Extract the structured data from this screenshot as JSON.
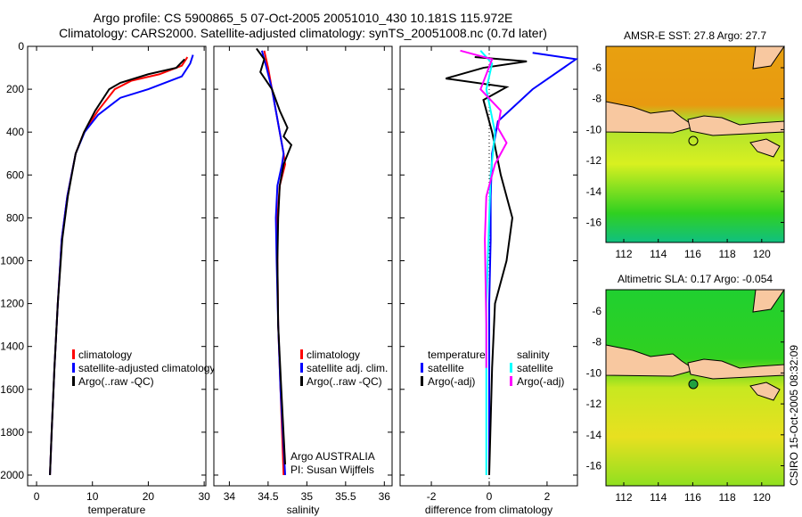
{
  "title_line1": "Argo profile: CS 5900865_5 07-Oct-2005 20051010_430 10.181S 115.972E",
  "title_line2": "Climatology: CARS2000. Satellite-adjusted climatology: synTS_20051008.nc (0.7d later)",
  "stamp": "CSIRO 15-Oct-2005 08:32:09",
  "colors": {
    "climatology": "#ff0000",
    "satellite": "#0000ff",
    "argo": "#000000",
    "sat_sal": "#00ffff",
    "argo_sal": "#ff00ff"
  },
  "chart_data": [
    {
      "type": "line",
      "xlabel": "temperature",
      "ylabel": "",
      "xlim": [
        -1.6,
        30.3
      ],
      "ylim": [
        2050,
        0
      ],
      "xticks": [
        "0",
        "10",
        "20",
        "30"
      ],
      "xtickv": [
        0,
        10,
        20,
        30
      ],
      "yticks": [
        "0",
        "200",
        "400",
        "600",
        "800",
        "1000",
        "1200",
        "1400",
        "1600",
        "1800",
        "2000"
      ],
      "ytickv": [
        0,
        200,
        400,
        600,
        800,
        1000,
        1200,
        1400,
        1600,
        1800,
        2000
      ],
      "legend": [
        "climatology",
        "satellite-adjusted climatology",
        "Argo(..raw -QC)"
      ],
      "series": [
        {
          "name": "climatology",
          "color": "#ff0000",
          "x": [
            27,
            26,
            22,
            17,
            14,
            11,
            8.5,
            7,
            5.5,
            4.5,
            3.8,
            3.2,
            2.7,
            2.4
          ],
          "y": [
            50,
            90,
            130,
            160,
            200,
            300,
            400,
            500,
            700,
            900,
            1200,
            1500,
            1800,
            2000
          ]
        },
        {
          "name": "satellite-adjusted climatology",
          "color": "#0000ff",
          "x": [
            28,
            27.5,
            26,
            20,
            15,
            11,
            8.6,
            7,
            5.5,
            4.5,
            3.8,
            3.2,
            2.7,
            2.4
          ],
          "y": [
            40,
            80,
            140,
            200,
            240,
            320,
            400,
            500,
            700,
            900,
            1200,
            1500,
            1800,
            2000
          ]
        },
        {
          "name": "Argo(..raw -QC)",
          "color": "#000000",
          "x": [
            26.5,
            25,
            20,
            15,
            13,
            10.5,
            8.5,
            7,
            5.6,
            4.6,
            3.8,
            3.2,
            2.7,
            2.4
          ],
          "y": [
            60,
            100,
            130,
            170,
            200,
            300,
            400,
            500,
            700,
            900,
            1200,
            1500,
            1800,
            2000
          ]
        }
      ]
    },
    {
      "type": "line",
      "xlabel": "salinity",
      "xlim": [
        33.8,
        36.1
      ],
      "ylim": [
        2050,
        0
      ],
      "xticks": [
        "34",
        "34.5",
        "35",
        "35.5",
        "36"
      ],
      "xtickv": [
        34,
        34.5,
        35,
        35.5,
        36
      ],
      "legend": [
        "climatology",
        "satellite adj. clim.",
        "Argo(..raw -QC)"
      ],
      "annotation": [
        "Argo AUSTRALIA",
        "PI: Susan Wijffels"
      ],
      "series": [
        {
          "name": "climatology",
          "color": "#ff0000",
          "x": [
            34.45,
            34.5,
            34.55,
            34.6,
            34.65,
            34.7,
            34.72,
            34.65,
            34.62,
            34.62,
            34.63,
            34.66,
            34.7
          ],
          "y": [
            20,
            100,
            200,
            300,
            400,
            500,
            550,
            650,
            800,
            1000,
            1300,
            1600,
            2000
          ]
        },
        {
          "name": "satellite adj. clim.",
          "color": "#0000ff",
          "x": [
            34.42,
            34.48,
            34.55,
            34.6,
            34.65,
            34.7,
            34.68,
            34.62,
            34.6,
            34.61,
            34.63,
            34.66,
            34.72
          ],
          "y": [
            20,
            100,
            200,
            300,
            400,
            500,
            550,
            650,
            800,
            1000,
            1300,
            1600,
            2000
          ]
        },
        {
          "name": "Argo(..raw -QC)",
          "color": "#000000",
          "x": [
            34.35,
            34.45,
            34.4,
            34.55,
            34.65,
            34.75,
            34.7,
            34.8,
            34.7,
            34.65,
            34.63,
            34.62,
            34.63,
            34.67,
            34.72
          ],
          "y": [
            10,
            60,
            120,
            200,
            300,
            380,
            420,
            460,
            550,
            650,
            800,
            1000,
            1300,
            1600,
            1950
          ]
        }
      ]
    },
    {
      "type": "line",
      "xlabel": "difference from climatology",
      "xlim": [
        -3.08,
        3.05
      ],
      "ylim": [
        2050,
        0
      ],
      "xticks": [
        "-2",
        "0",
        "2"
      ],
      "xtickv": [
        -2,
        0,
        2
      ],
      "legend": [
        "temperature",
        "satellite",
        "Argo(-adj)",
        "salinity",
        "satellite",
        "Argo(-adj)"
      ],
      "series": [
        {
          "name": "temperature satellite",
          "color": "#0000ff",
          "x": [
            1.5,
            3,
            1.5,
            0.3,
            0.1,
            0.05,
            0.05,
            0,
            0,
            0
          ],
          "y": [
            30,
            60,
            200,
            350,
            500,
            700,
            900,
            1200,
            1600,
            2000
          ]
        },
        {
          "name": "temperature Argo(-adj)",
          "color": "#000000",
          "x": [
            -0.5,
            1.3,
            -0.2,
            -1.5,
            0.6,
            -0.2,
            0.1,
            0.4,
            0.8,
            0.6,
            0.2,
            0.1,
            0
          ],
          "y": [
            50,
            70,
            100,
            150,
            190,
            250,
            400,
            600,
            800,
            1000,
            1200,
            1500,
            2000
          ]
        },
        {
          "name": "salinity satellite",
          "color": "#00ffff",
          "x": [
            -0.3,
            0.1,
            -0.1,
            0.2,
            0.05,
            0,
            -0.1,
            -0.1,
            -0.1
          ],
          "y": [
            20,
            80,
            200,
            400,
            600,
            800,
            1200,
            1600,
            2000
          ]
        },
        {
          "name": "salinity Argo(-adj)",
          "color": "#ff00ff",
          "x": [
            -1,
            0.1,
            -0.3,
            0.4,
            0.3,
            0.6,
            0.2,
            -0.1,
            -0.15,
            -0.1,
            -0.1
          ],
          "y": [
            20,
            60,
            200,
            300,
            380,
            450,
            550,
            700,
            900,
            1300,
            1500
          ]
        }
      ]
    }
  ],
  "maps": [
    {
      "title": "AMSR-E SST: 27.8 Argo: 27.7",
      "xticks": [
        "112",
        "114",
        "116",
        "118",
        "120"
      ],
      "yticks": [
        "-6",
        "-8",
        "-10",
        "-12",
        "-14",
        "-16"
      ]
    },
    {
      "title": "Altimetric SLA: 0.17 Argo: -0.054",
      "xticks": [
        "112",
        "114",
        "116",
        "118",
        "120"
      ],
      "yticks": [
        "-6",
        "-8",
        "-10",
        "-12",
        "-14",
        "-16"
      ]
    }
  ]
}
